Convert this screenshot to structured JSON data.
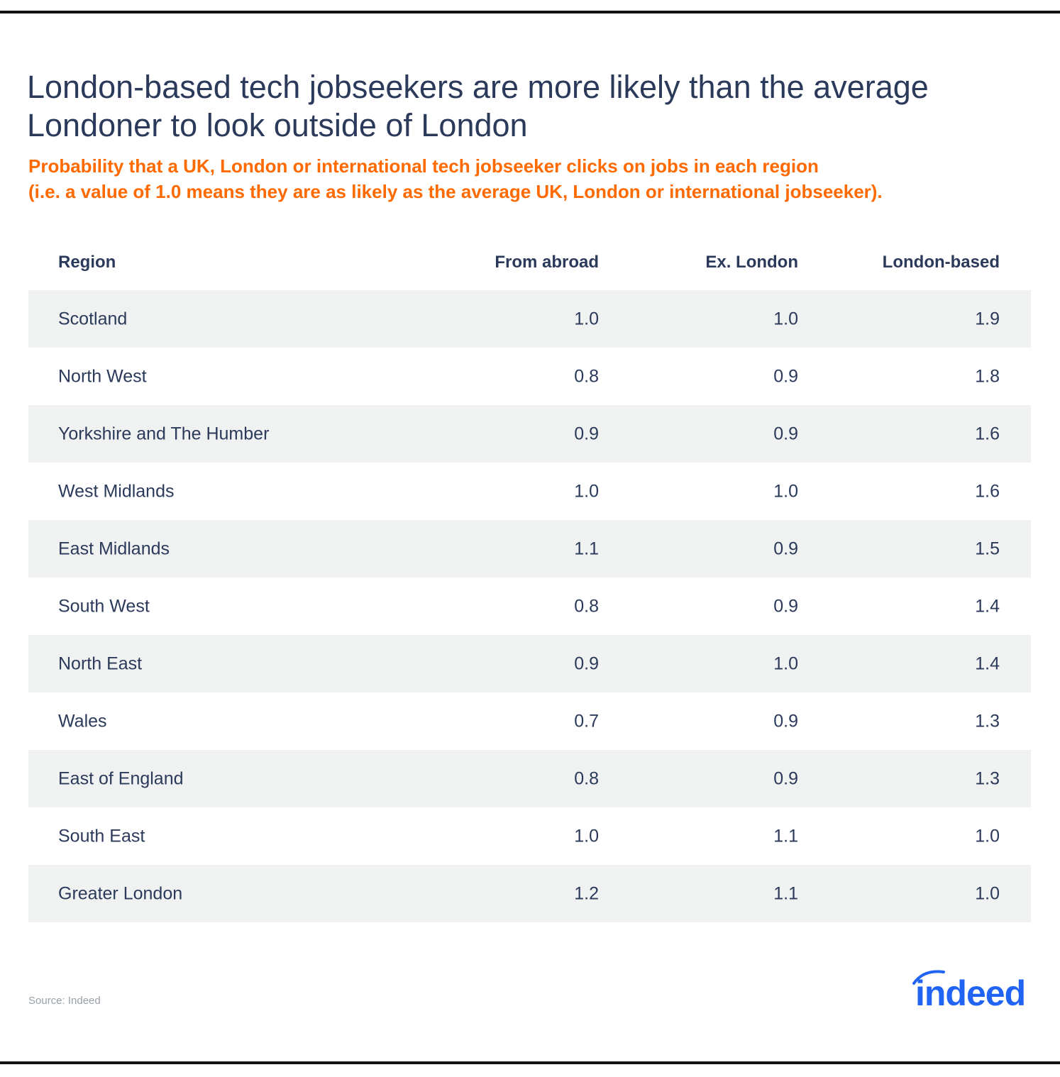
{
  "title": "London-based tech jobseekers are more likely than the average Londoner to look outside of London",
  "subtitle_line1": "Probability that a UK, London or international tech jobseeker clicks on jobs in each region",
  "subtitle_line2": "(i.e. a value of 1.0 means they are as likely as the average UK, London or international jobseeker).",
  "table": {
    "headers": [
      "Region",
      "From abroad",
      "Ex. London",
      "London-based"
    ],
    "rows": [
      [
        "Scotland",
        "1.0",
        "1.0",
        "1.9"
      ],
      [
        "North West",
        "0.8",
        "0.9",
        "1.8"
      ],
      [
        "Yorkshire and The Humber",
        "0.9",
        "0.9",
        "1.6"
      ],
      [
        "West Midlands",
        "1.0",
        "1.0",
        "1.6"
      ],
      [
        "East Midlands",
        "1.1",
        "0.9",
        "1.5"
      ],
      [
        "South West",
        "0.8",
        "0.9",
        "1.4"
      ],
      [
        "North East",
        "0.9",
        "1.0",
        "1.4"
      ],
      [
        "Wales",
        "0.7",
        "0.9",
        "1.3"
      ],
      [
        "East of England",
        "0.8",
        "0.9",
        "1.3"
      ],
      [
        "South East",
        "1.0",
        "1.1",
        "1.0"
      ],
      [
        "Greater London",
        "1.2",
        "1.1",
        "1.0"
      ]
    ]
  },
  "source": "Source: Indeed",
  "logo_text": "indeed",
  "colors": {
    "title": "#2b3a5a",
    "subtitle": "#ff6a00",
    "shade": "#f0f1f1",
    "brand": "#2164f3"
  }
}
